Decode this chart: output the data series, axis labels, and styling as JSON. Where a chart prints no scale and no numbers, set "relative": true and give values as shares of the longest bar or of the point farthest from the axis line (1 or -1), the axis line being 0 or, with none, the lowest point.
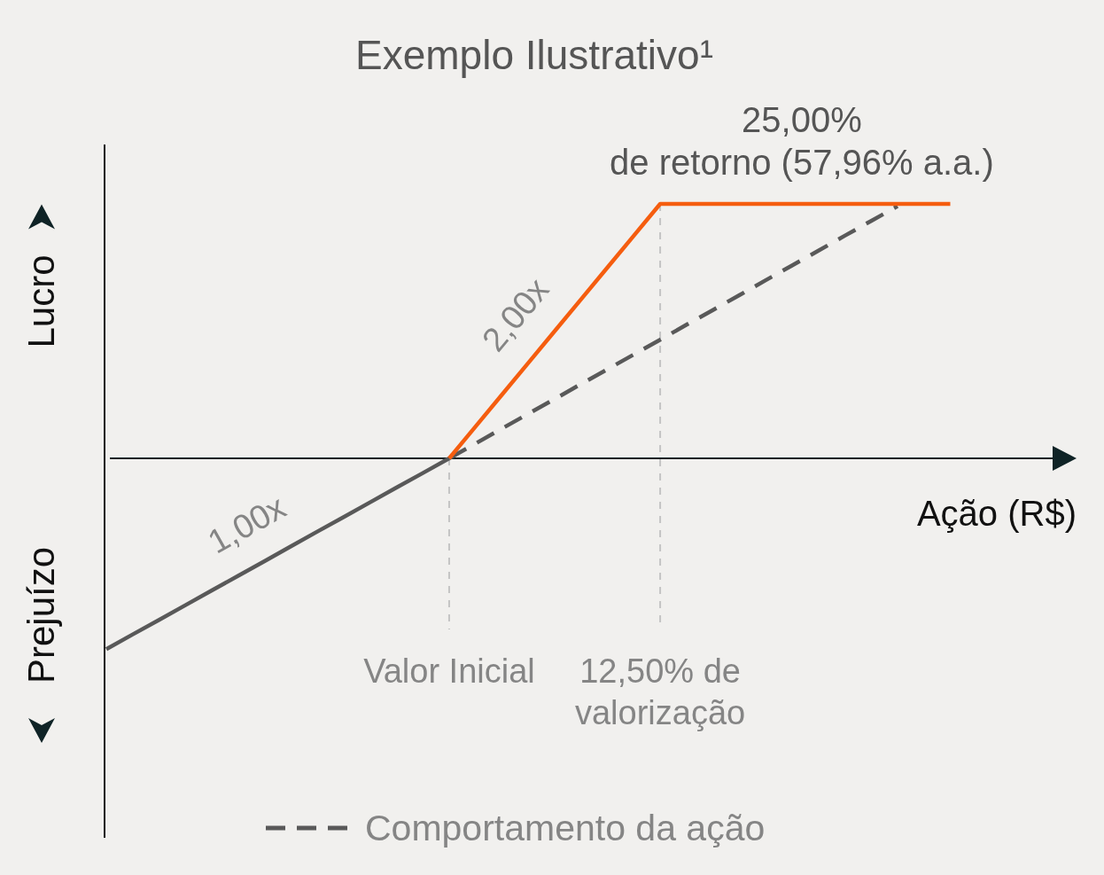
{
  "chart_data": {
    "type": "line",
    "title": "Exemplo Ilustrativo¹",
    "xlabel": "Ação (R$)",
    "relative": true,
    "categories": [
      null,
      null,
      null,
      null,
      null,
      null,
      null,
      null,
      null,
      null,
      null,
      null,
      null,
      "Valor Inicial",
      null,
      null,
      null,
      null,
      null,
      null,
      null,
      "12,50% de valorização",
      null,
      null,
      null,
      null,
      null,
      null,
      null,
      null,
      null,
      null,
      null
    ],
    "series": [
      {
        "color": "#595959",
        "values": [
          -0.75,
          -0.692,
          -0.635,
          -0.577,
          -0.519,
          -0.462,
          -0.404,
          -0.346,
          -0.288,
          -0.231,
          -0.173,
          -0.115,
          -0.058,
          0,
          null,
          null,
          null,
          null,
          null,
          null,
          null,
          null,
          null,
          null,
          null,
          null,
          null,
          null,
          null,
          null,
          null,
          null,
          null
        ]
      },
      {
        "name": "Comportamento da ação",
        "color": "#595959",
        "line_style": "dashed",
        "values": [
          null,
          null,
          null,
          null,
          null,
          null,
          null,
          null,
          null,
          null,
          null,
          null,
          null,
          0,
          0.058,
          0.117,
          0.175,
          0.233,
          0.292,
          0.35,
          0.408,
          0.466,
          0.525,
          0.583,
          0.641,
          0.7,
          0.758,
          0.816,
          0.875,
          0.933,
          0.991,
          null,
          null
        ]
      },
      {
        "color": "#f55d0f",
        "values": [
          null,
          null,
          null,
          null,
          null,
          null,
          null,
          null,
          null,
          null,
          null,
          null,
          null,
          0,
          0.125,
          0.25,
          0.375,
          0.5,
          0.625,
          0.75,
          0.875,
          1,
          1,
          1,
          1,
          1,
          1,
          1,
          1,
          1,
          1,
          1,
          1
        ]
      }
    ],
    "ref_lines": [
      {
        "axis": "x",
        "value": "Valor Inicial",
        "color": "#c4c4c4",
        "line_style": "dashed"
      },
      {
        "axis": "x",
        "value": "12,50% de valorização",
        "color": "#c4c4c4",
        "line_style": "dashed"
      }
    ],
    "annotations": [
      "25,00%\nde retorno (57,96% a.a.)",
      "2,00x",
      "1,00x",
      "Lucro",
      "Prejuízo"
    ],
    "legend": "bottom"
  }
}
